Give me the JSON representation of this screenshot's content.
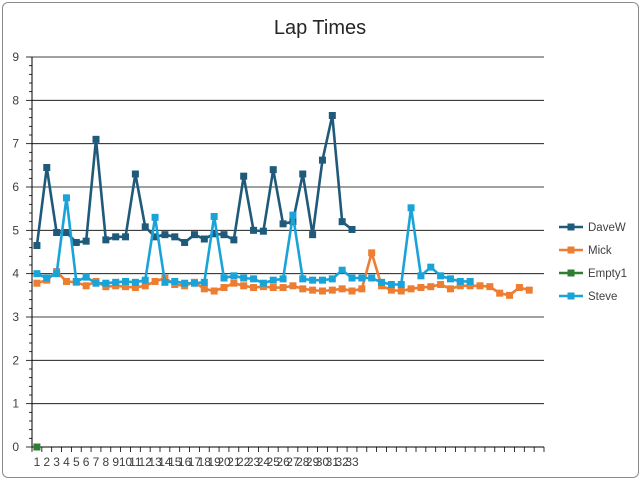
{
  "chart_data": {
    "type": "line",
    "title": "Lap Times",
    "ylim": [
      0,
      9
    ],
    "y_ticks": [
      "0",
      "1",
      "2",
      "3",
      "4",
      "5",
      "6",
      "7",
      "8",
      "9"
    ],
    "x_count": 52,
    "x_tick_labels": [
      "1",
      "2",
      "3",
      "4",
      "5",
      "6",
      "7",
      "8",
      "9",
      "10",
      "11",
      "12",
      "13",
      "14",
      "15",
      "16",
      "17",
      "18",
      "19",
      "20",
      "21",
      "22",
      "23",
      "24",
      "25",
      "26",
      "27",
      "28",
      "29",
      "30",
      "31",
      "32",
      "33"
    ],
    "grid": true,
    "legend_position": "right",
    "series": [
      {
        "name": "DaveW",
        "color": "#1f5a7a",
        "values": [
          4.65,
          6.45,
          4.95,
          4.95,
          4.72,
          4.75,
          7.1,
          4.78,
          4.85,
          4.85,
          6.3,
          5.08,
          4.85,
          4.9,
          4.85,
          4.72,
          4.9,
          4.8,
          4.92,
          4.9,
          4.78,
          6.25,
          5.0,
          4.98,
          6.4,
          5.15,
          5.2,
          6.3,
          4.9,
          6.62,
          7.65,
          5.2,
          5.02
        ]
      },
      {
        "name": "Mick",
        "color": "#ed7d31",
        "values": [
          3.78,
          3.85,
          4.05,
          3.82,
          3.8,
          3.72,
          3.82,
          3.7,
          3.72,
          3.7,
          3.68,
          3.72,
          3.82,
          3.9,
          3.75,
          3.72,
          3.8,
          3.65,
          3.6,
          3.68,
          3.78,
          3.72,
          3.68,
          3.7,
          3.68,
          3.68,
          3.72,
          3.65,
          3.62,
          3.6,
          3.62,
          3.65,
          3.6,
          3.65,
          4.48,
          3.72,
          3.62,
          3.6,
          3.65,
          3.68,
          3.7,
          3.75,
          3.65,
          3.72,
          3.72,
          3.72,
          3.7,
          3.55,
          3.5,
          3.68,
          3.62
        ]
      },
      {
        "name": "Empty1",
        "color": "#2e7d32",
        "values": [
          0
        ]
      },
      {
        "name": "Steve",
        "color": "#1aa3d8",
        "values": [
          4.0,
          3.9,
          4.0,
          5.75,
          3.82,
          3.92,
          3.78,
          3.78,
          3.8,
          3.82,
          3.8,
          3.85,
          5.3,
          3.8,
          3.82,
          3.78,
          3.78,
          3.8,
          5.32,
          3.9,
          3.95,
          3.9,
          3.88,
          3.78,
          3.85,
          3.88,
          5.35,
          3.88,
          3.85,
          3.85,
          3.88,
          4.08,
          3.9,
          3.9,
          3.9,
          3.8,
          3.75,
          3.75,
          5.52,
          3.95,
          4.15,
          3.95,
          3.88,
          3.82,
          3.82
        ]
      }
    ]
  }
}
